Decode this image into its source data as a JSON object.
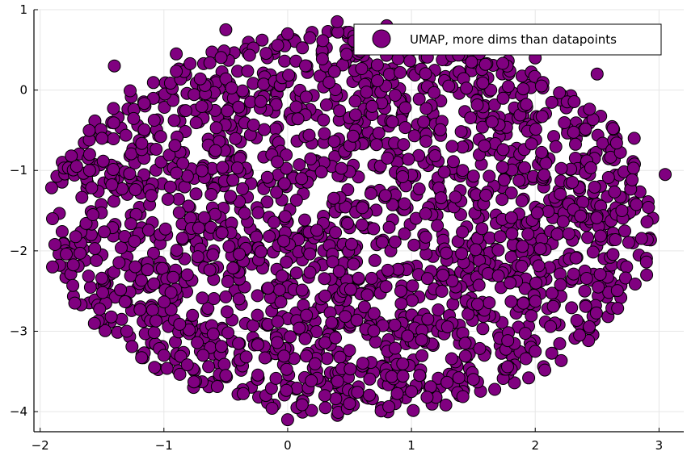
{
  "chart_data": {
    "type": "scatter",
    "title": "",
    "xlabel": "",
    "ylabel": "",
    "xlim": [
      -2.05,
      3.2
    ],
    "ylim": [
      -4.25,
      1.0
    ],
    "xticks": [
      -2,
      -1,
      0,
      1,
      2,
      3
    ],
    "yticks": [
      1,
      0,
      -1,
      -2,
      -3,
      -4
    ],
    "xtick_labels": [
      "−2",
      "−1",
      "0",
      "1",
      "2",
      "3"
    ],
    "ytick_labels": [
      "1",
      "0",
      "−1",
      "−2",
      "−3",
      "−4"
    ],
    "grid": true,
    "legend_position": "top-right",
    "series": [
      {
        "name": "UMAP, more dims than datapoints",
        "color": "#800080",
        "edge_color": "#000000",
        "description_of_distribution": "dense elliptical cloud of roughly 2000 points centered near (0.5, -1.6)",
        "point_count_estimate": 2000,
        "cloud": {
          "center": [
            0.5,
            -1.65
          ],
          "x_semi_axis": 2.45,
          "y_semi_axis": 2.5
        }
      }
    ],
    "sample_points": [
      [
        -1.9,
        -1.6
      ],
      [
        -1.9,
        -2.2
      ],
      [
        -1.72,
        -2.65
      ],
      [
        -1.6,
        -1.0
      ],
      [
        -1.5,
        -0.6
      ],
      [
        -1.4,
        0.3
      ],
      [
        -1.3,
        -3.0
      ],
      [
        -1.0,
        -3.3
      ],
      [
        -0.5,
        -3.55
      ],
      [
        0.0,
        -4.1
      ],
      [
        0.3,
        -3.8
      ],
      [
        0.4,
        0.85
      ],
      [
        0.5,
        -3.9
      ],
      [
        1.0,
        -3.75
      ],
      [
        1.5,
        -3.6
      ],
      [
        2.0,
        -3.25
      ],
      [
        2.4,
        -2.5
      ],
      [
        2.9,
        -2.3
      ],
      [
        3.05,
        -1.05
      ],
      [
        2.8,
        -0.6
      ],
      [
        2.5,
        0.2
      ],
      [
        2.0,
        0.4
      ],
      [
        1.5,
        0.7
      ],
      [
        0.8,
        0.8
      ],
      [
        0.0,
        0.7
      ],
      [
        -0.5,
        0.75
      ],
      [
        -0.9,
        0.45
      ],
      [
        2.05,
        0.05
      ],
      [
        -1.6,
        -0.8
      ],
      [
        2.7,
        -1.5
      ]
    ]
  },
  "legend": {
    "label": "UMAP, more dims than datapoints"
  }
}
